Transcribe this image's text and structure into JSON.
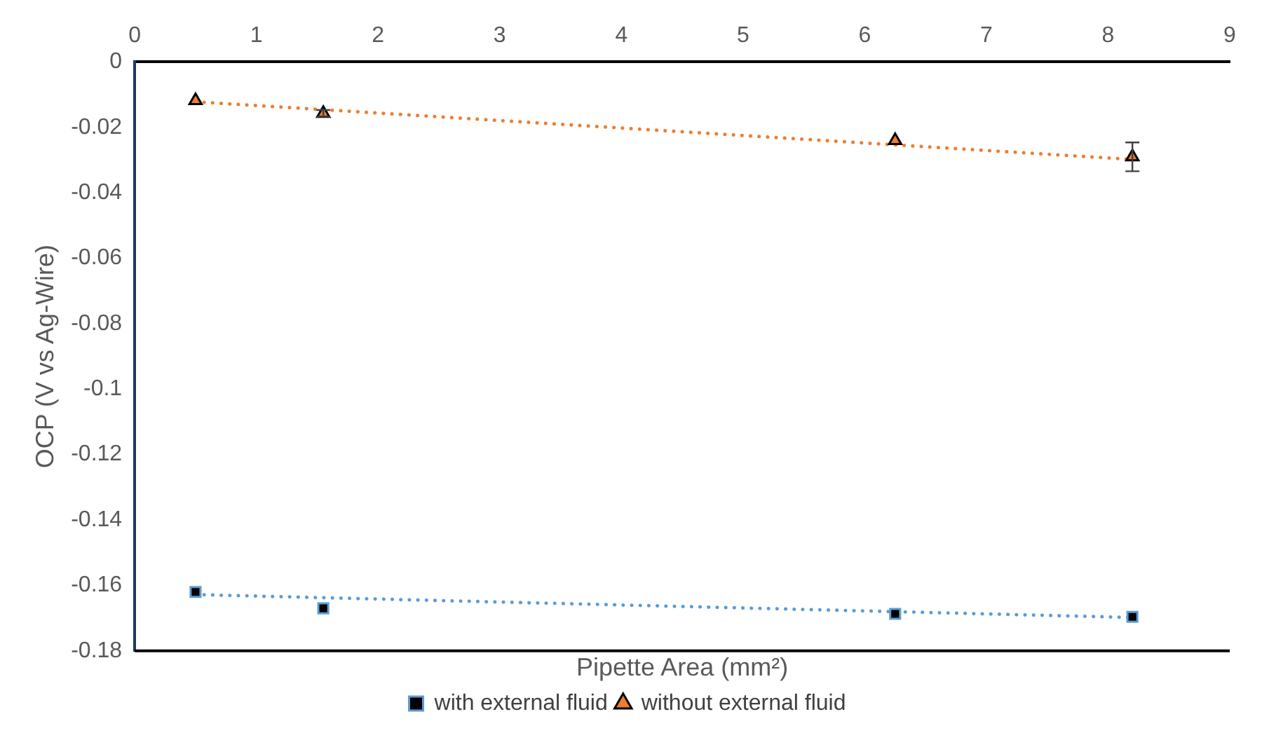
{
  "chart_data": {
    "type": "scatter",
    "xlabel": "Pipette Area (mm²)",
    "ylabel": "OCP (V vs Ag-Wire)",
    "xlim": [
      0,
      9
    ],
    "xticks": [
      0,
      1,
      2,
      3,
      4,
      5,
      6,
      7,
      8,
      9
    ],
    "ylim": [
      -0.18,
      0
    ],
    "yticks": [
      -0.18,
      -0.16,
      -0.14,
      -0.12,
      -0.1,
      -0.08,
      -0.06,
      -0.04,
      -0.02,
      0
    ],
    "grid": false,
    "legend": "bottom",
    "series": [
      {
        "name": "with external fluid",
        "marker": "square",
        "color": "#000000",
        "x": [
          0.5,
          1.55,
          6.25,
          8.2
        ],
        "values": [
          -0.162,
          -0.167,
          -0.1687,
          -0.1696
        ]
      },
      {
        "name": "without external fluid",
        "marker": "triangle",
        "color": "#ed7d31",
        "x": [
          0.5,
          1.55,
          6.25,
          8.2
        ],
        "values": [
          -0.0118,
          -0.0157,
          -0.024,
          -0.029
        ],
        "errors": [
          null,
          0.001,
          null,
          0.0044
        ]
      },
      {
        "type": "line",
        "line_style": "dotted",
        "color": "#5b9bd5",
        "x": [
          0.5,
          8.2
        ],
        "values": [
          -0.1628,
          -0.1698
        ]
      },
      {
        "type": "line",
        "line_style": "dotted",
        "color": "#ed7d31",
        "x": [
          0.5,
          8.2
        ],
        "values": [
          -0.0122,
          -0.0298
        ]
      }
    ]
  }
}
